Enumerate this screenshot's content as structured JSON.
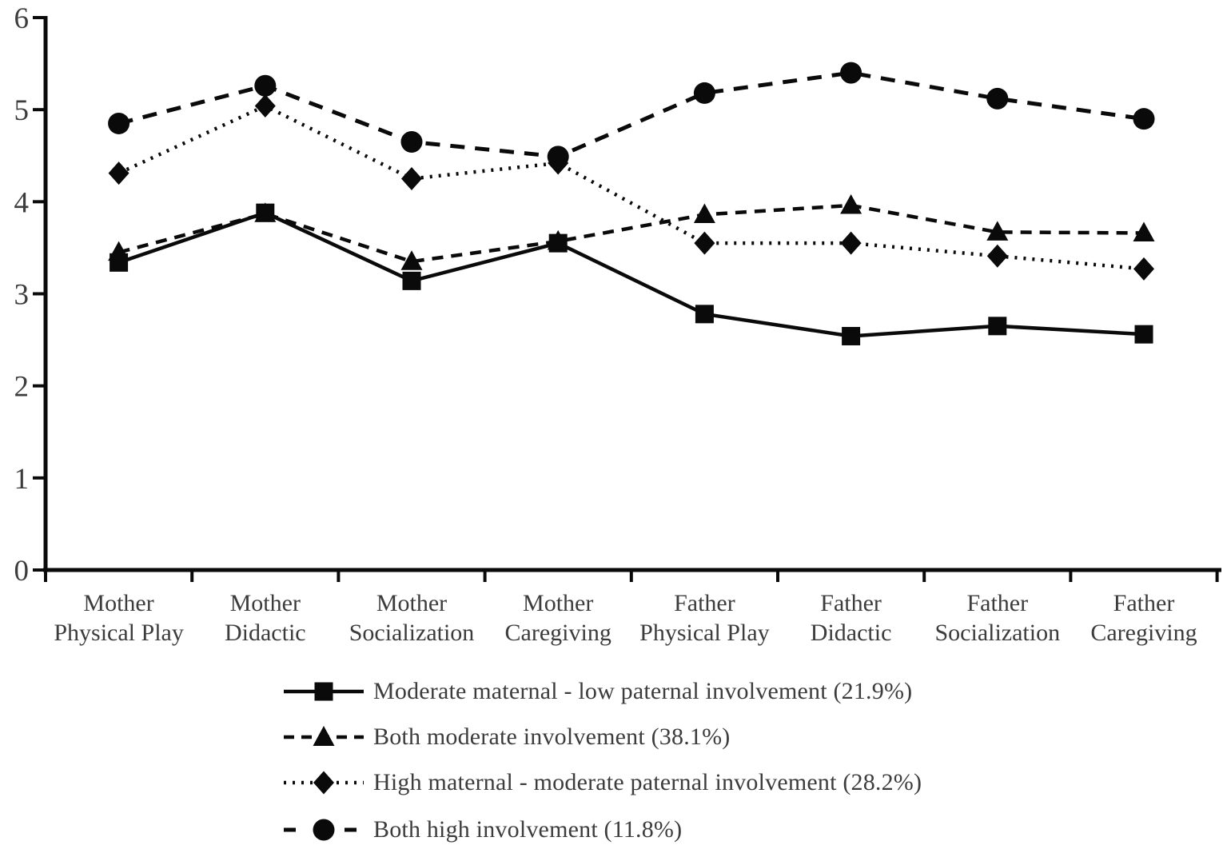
{
  "chart_data": {
    "type": "line",
    "title": "",
    "xlabel": "",
    "ylabel": "",
    "categories": [
      "Mother Physical Play",
      "Mother Didactic",
      "Mother Socialization",
      "Mother Caregiving",
      "Father Physical Play",
      "Father Didactic",
      "Father Socialization",
      "Father Caregiving"
    ],
    "series": [
      {
        "name": "Moderate maternal - low paternal involvement (21.9%)",
        "marker": "square",
        "line": "solid",
        "values": [
          3.34,
          3.88,
          3.14,
          3.55,
          2.78,
          2.54,
          2.65,
          2.56
        ]
      },
      {
        "name": "Both moderate involvement (38.1%)",
        "marker": "triangle",
        "line": "dashed",
        "values": [
          3.45,
          3.87,
          3.35,
          3.57,
          3.86,
          3.96,
          3.67,
          3.66
        ]
      },
      {
        "name": "High maternal - moderate paternal involvement (28.2%)",
        "marker": "diamond",
        "line": "dotted",
        "values": [
          4.31,
          5.04,
          4.25,
          4.42,
          3.55,
          3.55,
          3.41,
          3.27
        ]
      },
      {
        "name": "Both high involvement (11.8%)",
        "marker": "circle",
        "line": "long-dash",
        "values": [
          4.85,
          5.26,
          4.65,
          4.49,
          5.18,
          5.4,
          5.12,
          4.9
        ]
      }
    ],
    "ylim": [
      0,
      6
    ],
    "yticks": [
      0,
      1,
      2,
      3,
      4,
      5,
      6
    ],
    "grid": false,
    "legend_position": "bottom",
    "draw_order": [
      1,
      2,
      3,
      0
    ],
    "colors": {
      "line": "#0a0a0a",
      "marker": "#0a0a0a",
      "text": "#3c3c3c"
    }
  }
}
